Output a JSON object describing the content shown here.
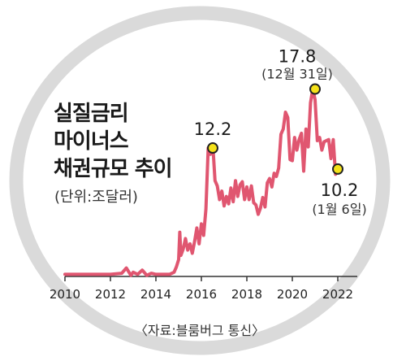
{
  "chart_data": {
    "type": "line",
    "title_lines": [
      "실질금리",
      "마이너스",
      "채권규모 추이"
    ],
    "unit": "(단위:조달러)",
    "source": "〈자료:블룸버그 통신〉",
    "xlabel": "",
    "ylabel": "",
    "xlim": [
      2010,
      2022.5
    ],
    "ylim": [
      0,
      19
    ],
    "x_ticks": [
      2010,
      2012,
      2014,
      2016,
      2018,
      2020,
      2022
    ],
    "x_tick_labels": [
      "2010",
      "2012",
      "2014",
      "2016",
      "2018",
      "2020",
      "2022"
    ],
    "grid": false,
    "colors": {
      "line": "#e05670",
      "ring": "#dadada",
      "marker_fill": "#f5e21a",
      "marker_stroke": "#222222",
      "axis": "#333333"
    },
    "series": [
      {
        "x": [
          2010.0,
          2011.0,
          2012.0,
          2012.5,
          2012.7,
          2012.9,
          2013.0,
          2013.2,
          2013.4,
          2013.6,
          2013.8,
          2014.0,
          2014.3,
          2014.6,
          2014.8,
          2014.9,
          2015.0,
          2015.05,
          2015.1,
          2015.2,
          2015.3,
          2015.4,
          2015.5,
          2015.6,
          2015.7,
          2015.8,
          2015.9,
          2016.0,
          2016.1,
          2016.2,
          2016.3,
          2016.4,
          2016.5,
          2016.6,
          2016.7,
          2016.8,
          2016.9,
          2017.0,
          2017.1,
          2017.2,
          2017.3,
          2017.4,
          2017.5,
          2017.6,
          2017.7,
          2017.8,
          2017.9,
          2018.0,
          2018.1,
          2018.2,
          2018.3,
          2018.4,
          2018.5,
          2018.6,
          2018.7,
          2018.8,
          2018.9,
          2019.0,
          2019.1,
          2019.2,
          2019.3,
          2019.4,
          2019.5,
          2019.6,
          2019.7,
          2019.8,
          2019.9,
          2020.0,
          2020.1,
          2020.2,
          2020.3,
          2020.4,
          2020.5,
          2020.6,
          2020.7,
          2020.8,
          2020.9,
          2021.0,
          2021.1,
          2021.2,
          2021.3,
          2021.4,
          2021.5,
          2021.6,
          2021.7,
          2021.8,
          2021.9,
          2022.0
        ],
        "values": [
          0.2,
          0.2,
          0.2,
          0.3,
          0.8,
          0.1,
          0.4,
          0.2,
          0.6,
          0.1,
          0.3,
          0.2,
          0.2,
          0.2,
          0.4,
          0.9,
          1.6,
          4.2,
          2.0,
          2.6,
          3.6,
          2.5,
          3.1,
          2.2,
          3.3,
          4.6,
          3.1,
          5.0,
          3.9,
          6.4,
          12.2,
          11.6,
          12.6,
          9.1,
          8.6,
          7.3,
          8.1,
          6.7,
          7.6,
          6.9,
          8.4,
          7.1,
          9.1,
          7.6,
          8.7,
          9.0,
          7.3,
          8.5,
          7.3,
          8.6,
          7.0,
          6.8,
          5.9,
          6.5,
          7.5,
          6.6,
          8.9,
          9.3,
          8.5,
          9.8,
          9.5,
          10.3,
          13.5,
          14.0,
          15.6,
          15.1,
          11.1,
          11.0,
          13.2,
          12.0,
          13.0,
          13.6,
          10.0,
          14.0,
          12.3,
          16.5,
          17.8,
          16.8,
          12.9,
          13.2,
          12.0,
          12.8,
          12.9,
          13.0,
          11.2,
          13.0,
          9.7,
          10.2
        ]
      }
    ],
    "annotations": [
      {
        "x": 2016.5,
        "y": 12.2,
        "value": "12.2",
        "date": ""
      },
      {
        "x": 2021.0,
        "y": 17.8,
        "value": "17.8",
        "date": "(12월 31일)"
      },
      {
        "x": 2022.0,
        "y": 10.2,
        "value": "10.2",
        "date": "(1월 6일)"
      }
    ]
  }
}
